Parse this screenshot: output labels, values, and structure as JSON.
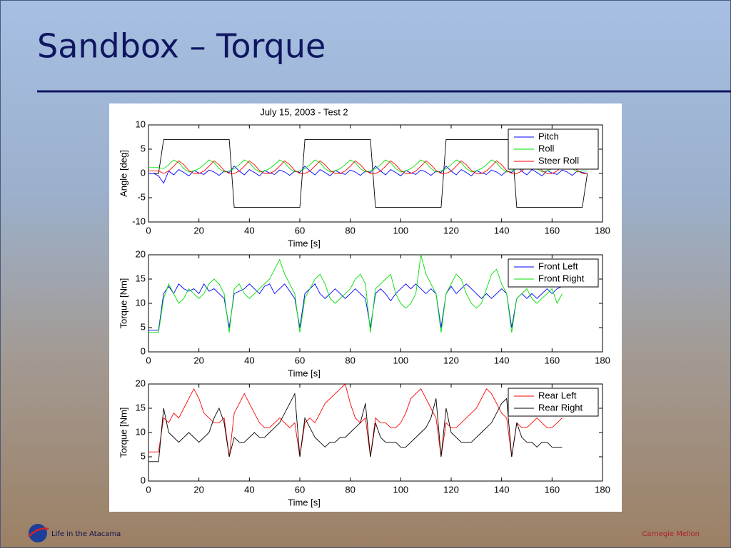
{
  "title": "Sandbox – Torque",
  "footer_left": "Life in the Atacama",
  "footer_right": "Carnegie Mellon",
  "chart_data": [
    {
      "type": "line",
      "title": "July 15, 2003 - Test 2",
      "xlabel": "Time [s]",
      "ylabel": "Angle [deg]",
      "legend": "upper right",
      "xlim": [
        0,
        180
      ],
      "xticks": [
        0,
        20,
        40,
        60,
        80,
        100,
        120,
        140,
        160,
        180
      ],
      "ylim": [
        -10,
        10
      ],
      "yticks": [
        -10,
        -5,
        0,
        5,
        10
      ],
      "x": [
        0,
        2,
        4,
        6,
        8,
        10,
        12,
        14,
        16,
        18,
        20,
        22,
        24,
        26,
        28,
        30,
        32,
        34,
        36,
        38,
        40,
        42,
        44,
        46,
        48,
        50,
        52,
        54,
        56,
        58,
        60,
        62,
        64,
        66,
        68,
        70,
        72,
        74,
        76,
        78,
        80,
        82,
        84,
        86,
        88,
        90,
        92,
        94,
        96,
        98,
        100,
        102,
        104,
        106,
        108,
        110,
        112,
        114,
        116,
        118,
        120,
        122,
        124,
        126,
        128,
        130,
        132,
        134,
        136,
        138,
        140,
        142,
        144,
        146,
        148,
        150,
        152,
        154,
        156,
        158,
        160,
        162,
        164,
        166,
        168,
        170,
        172,
        174
      ],
      "series": [
        {
          "color": "#000000",
          "values": [
            0,
            0,
            0,
            7,
            7,
            7,
            7,
            7,
            7,
            7,
            7,
            7,
            7,
            7,
            7,
            7,
            7,
            -7,
            -7,
            -7,
            -7,
            -7,
            -7,
            -7,
            -7,
            -7,
            -7,
            -7,
            -7,
            -7,
            -7,
            7,
            7,
            7,
            7,
            7,
            7,
            7,
            7,
            7,
            7,
            7,
            7,
            7,
            7,
            -7,
            -7,
            -7,
            -7,
            -7,
            -7,
            -7,
            -7,
            -7,
            -7,
            -7,
            -7,
            -7,
            -7,
            7,
            7,
            7,
            7,
            7,
            7,
            7,
            7,
            7,
            7,
            7,
            7,
            7,
            7,
            -7,
            -7,
            -7,
            -7,
            -7,
            -7,
            -7,
            -7,
            -7,
            -7,
            -7,
            -7,
            -7,
            -7,
            0
          ]
        },
        {
          "name": "Pitch",
          "color": "#0000ff",
          "values": [
            0,
            0,
            -0.5,
            -2,
            0.5,
            -0.3,
            0.8,
            0.2,
            -0.5,
            0.6,
            0.1,
            -0.2,
            0.7,
            0.3,
            -0.4,
            0.5,
            0.2,
            1.5,
            0.5,
            -0.3,
            0.8,
            0.2,
            -0.5,
            0.6,
            0.1,
            -0.2,
            0.7,
            0.3,
            -0.4,
            0.5,
            0.2,
            1.5,
            0.5,
            -0.3,
            0.8,
            0.2,
            -0.5,
            0.6,
            0.1,
            -0.2,
            0.7,
            0.3,
            -0.4,
            0.5,
            0.2,
            1.5,
            0.5,
            -0.3,
            0.8,
            0.2,
            -0.5,
            0.6,
            0.1,
            -0.2,
            0.7,
            0.3,
            -0.4,
            0.5,
            0.2,
            1.5,
            0.5,
            -0.3,
            0.8,
            0.2,
            -0.5,
            0.6,
            0.1,
            -0.2,
            0.7,
            0.3,
            -0.4,
            0.5,
            0.2,
            1.5,
            0.5,
            -0.3,
            0.8,
            0.2,
            -0.5,
            0.6,
            0.1,
            -0.2,
            0.7,
            0.3,
            -0.4,
            0.5,
            0.2,
            0
          ]
        },
        {
          "name": "Roll",
          "color": "#00e000",
          "values": [
            1.2,
            1.2,
            1.2,
            1,
            1.8,
            2.8,
            2.2,
            1,
            0.3,
            0.5,
            1,
            1.8,
            2.8,
            2.2,
            1,
            0.3,
            0.5,
            1,
            1.8,
            2.8,
            2.2,
            1,
            0.3,
            0.5,
            1,
            1.8,
            2.8,
            2.2,
            1,
            0.3,
            0.5,
            1,
            1.8,
            2.8,
            2.2,
            1,
            0.3,
            0.5,
            1,
            1.8,
            2.8,
            2.2,
            1,
            0.3,
            0.5,
            1,
            1.8,
            2.8,
            2.2,
            1,
            0.3,
            0.5,
            1,
            1.8,
            2.8,
            2.2,
            1,
            0.3,
            0.5,
            1,
            1.8,
            2.8,
            2.2,
            1,
            0.3,
            0.5,
            1,
            1.8,
            2.8,
            2.2,
            1,
            0.3,
            0.5,
            1,
            1.8,
            2.8,
            2.2,
            1,
            0.3,
            0.5,
            1,
            1.8,
            2.8,
            2.2,
            1,
            0.3,
            0.5,
            0.5
          ]
        },
        {
          "name": "Steer Roll",
          "color": "#ff0000",
          "values": [
            0.5,
            0.5,
            0.5,
            0,
            0.5,
            1.5,
            2.6,
            1.8,
            0.6,
            0,
            0,
            0.5,
            1.5,
            2.6,
            1.8,
            0.6,
            0,
            0,
            0.5,
            1.5,
            2.6,
            1.8,
            0.6,
            0,
            0,
            0.5,
            1.5,
            2.6,
            1.8,
            0.6,
            0,
            0,
            0.5,
            1.5,
            2.6,
            1.8,
            0.6,
            0,
            0,
            0.5,
            1.5,
            2.6,
            1.8,
            0.6,
            0,
            0,
            0.5,
            1.5,
            2.6,
            1.8,
            0.6,
            0,
            0,
            0.5,
            1.5,
            2.6,
            1.8,
            0.6,
            0,
            0,
            0.5,
            1.5,
            2.6,
            1.8,
            0.6,
            0,
            0,
            0.5,
            1.5,
            2.6,
            1.8,
            0.6,
            0,
            0,
            0.5,
            1.5,
            2.6,
            1.8,
            0.6,
            0,
            0,
            0.5,
            1.5,
            2.6,
            1.8,
            0.6,
            0,
            0
          ]
        }
      ]
    },
    {
      "type": "line",
      "xlabel": "Time [s]",
      "ylabel": "Torque [Nm]",
      "legend": "upper right",
      "xlim": [
        0,
        180
      ],
      "xticks": [
        0,
        20,
        40,
        60,
        80,
        100,
        120,
        140,
        160,
        180
      ],
      "ylim": [
        0,
        20
      ],
      "yticks": [
        0,
        5,
        10,
        15,
        20
      ],
      "x": [
        0,
        2,
        4,
        6,
        8,
        10,
        12,
        14,
        16,
        18,
        20,
        22,
        24,
        26,
        28,
        30,
        32,
        34,
        36,
        38,
        40,
        42,
        44,
        46,
        48,
        50,
        52,
        54,
        56,
        58,
        60,
        62,
        64,
        66,
        68,
        70,
        72,
        74,
        76,
        78,
        80,
        82,
        84,
        86,
        88,
        90,
        92,
        94,
        96,
        98,
        100,
        102,
        104,
        106,
        108,
        110,
        112,
        114,
        116,
        118,
        120,
        122,
        124,
        126,
        128,
        130,
        132,
        134,
        136,
        138,
        140,
        142,
        144,
        146,
        148,
        150,
        152,
        154,
        156,
        158,
        160,
        162,
        164
      ],
      "series": [
        {
          "name": "Front Left",
          "color": "#0000ff",
          "values": [
            4.5,
            4.5,
            4.5,
            12,
            13.5,
            12,
            14,
            13,
            12.5,
            13,
            12,
            14,
            12.5,
            13,
            12,
            11,
            5,
            12,
            12.5,
            13,
            14,
            13,
            12,
            13.5,
            14,
            12,
            13,
            14,
            12.5,
            11,
            5,
            12,
            13,
            14,
            12,
            11,
            12,
            13,
            12,
            11,
            12,
            13,
            12,
            11,
            5,
            12,
            13,
            12,
            10.5,
            12,
            13,
            14,
            13,
            14,
            13,
            12,
            13,
            12,
            5,
            12,
            13.5,
            12,
            13,
            14,
            13,
            12,
            11,
            12,
            11,
            12,
            13,
            12,
            5,
            11,
            12,
            11,
            12,
            11,
            12,
            13,
            12,
            13,
            13.5
          ]
        },
        {
          "name": "Front Right",
          "color": "#00e000",
          "values": [
            4,
            4,
            4,
            11,
            14,
            12,
            10,
            11,
            13,
            12,
            11,
            12,
            14,
            15,
            14,
            12,
            4,
            13,
            14,
            12,
            11,
            12,
            13,
            14,
            15,
            17,
            19,
            16,
            14,
            12,
            4,
            11,
            13,
            15,
            16,
            14,
            11,
            10,
            11,
            12,
            13,
            15,
            16,
            14,
            4,
            13,
            14,
            15,
            16,
            12,
            10,
            9,
            10,
            12,
            20,
            16,
            14,
            12,
            4,
            12,
            14,
            16,
            15,
            12,
            10,
            9,
            10,
            13,
            16,
            17,
            14,
            12,
            4,
            11,
            12,
            13,
            11,
            10,
            11,
            12,
            13,
            10,
            12
          ]
        }
      ]
    },
    {
      "type": "line",
      "xlabel": "Time [s]",
      "ylabel": "Torque [Nm]",
      "legend": "upper right",
      "xlim": [
        0,
        180
      ],
      "xticks": [
        0,
        20,
        40,
        60,
        80,
        100,
        120,
        140,
        160,
        180
      ],
      "ylim": [
        0,
        20
      ],
      "yticks": [
        0,
        5,
        10,
        15,
        20
      ],
      "x": [
        0,
        2,
        4,
        6,
        8,
        10,
        12,
        14,
        16,
        18,
        20,
        22,
        24,
        26,
        28,
        30,
        32,
        34,
        36,
        38,
        40,
        42,
        44,
        46,
        48,
        50,
        52,
        54,
        56,
        58,
        60,
        62,
        64,
        66,
        68,
        70,
        72,
        74,
        76,
        78,
        80,
        82,
        84,
        86,
        88,
        90,
        92,
        94,
        96,
        98,
        100,
        102,
        104,
        106,
        108,
        110,
        112,
        114,
        116,
        118,
        120,
        122,
        124,
        126,
        128,
        130,
        132,
        134,
        136,
        138,
        140,
        142,
        144,
        146,
        148,
        150,
        152,
        154,
        156,
        158,
        160,
        162,
        164
      ],
      "series": [
        {
          "name": "Rear Left",
          "color": "#ff0000",
          "values": [
            6,
            6,
            6,
            13,
            12,
            14,
            13,
            15,
            17,
            19,
            17,
            14,
            13,
            12,
            12,
            13,
            5,
            14,
            16,
            18,
            16,
            14,
            12,
            11,
            11,
            12,
            13,
            12,
            11,
            12,
            5,
            12,
            13,
            12,
            14,
            16,
            17,
            18,
            19,
            20,
            16,
            13,
            12,
            13,
            5,
            13,
            12,
            12,
            11,
            11,
            12,
            14,
            17,
            18,
            19,
            17,
            15,
            13,
            5,
            12,
            11,
            11,
            12,
            13,
            14,
            15,
            17,
            19,
            18,
            16,
            14,
            13,
            5,
            12,
            11,
            11,
            12,
            13,
            12,
            11,
            11,
            12,
            13
          ]
        },
        {
          "name": "Rear Right",
          "color": "#000000",
          "values": [
            4,
            4,
            4,
            15,
            10,
            9,
            8,
            9,
            10,
            9,
            8,
            9,
            10,
            13,
            15,
            12,
            5,
            9,
            8,
            8,
            9,
            10,
            9,
            9,
            10,
            11,
            12,
            14,
            16,
            18,
            5,
            13,
            11,
            9,
            8,
            7,
            8,
            8,
            9,
            9,
            10,
            11,
            12,
            16,
            5,
            12,
            9,
            8,
            8,
            8,
            7,
            7,
            8,
            9,
            10,
            11,
            13,
            17,
            5,
            15,
            10,
            9,
            8,
            8,
            8,
            9,
            10,
            11,
            12,
            14,
            16,
            17,
            5,
            12,
            9,
            8,
            8,
            7,
            8,
            8,
            7,
            7,
            7
          ]
        }
      ]
    }
  ]
}
